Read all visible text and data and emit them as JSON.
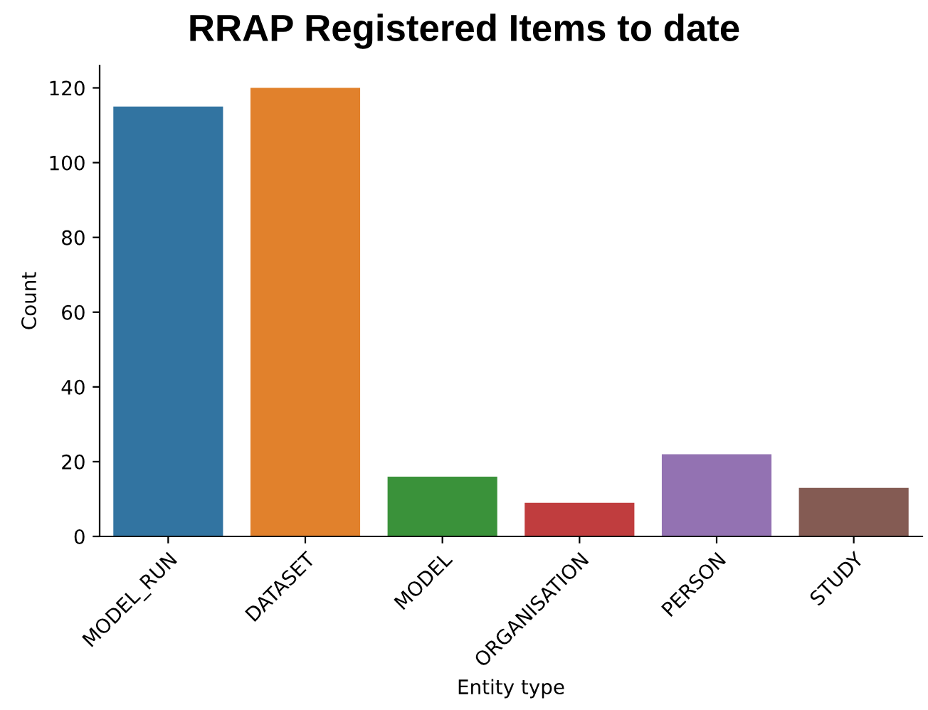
{
  "chart_data": {
    "type": "bar",
    "title": "RRAP Registered Items to date",
    "xlabel": "Entity type",
    "ylabel": "Count",
    "categories": [
      "MODEL_RUN",
      "DATASET",
      "MODEL",
      "ORGANISATION",
      "PERSON",
      "STUDY"
    ],
    "values": [
      115,
      120,
      16,
      9,
      22,
      13
    ],
    "colors": [
      "#3274a1",
      "#e1812c",
      "#3a923a",
      "#c03d3e",
      "#9372b2",
      "#845b53"
    ],
    "ylim": [
      0,
      126
    ],
    "yticks": [
      0,
      20,
      40,
      60,
      80,
      100,
      120
    ],
    "grid": false
  }
}
